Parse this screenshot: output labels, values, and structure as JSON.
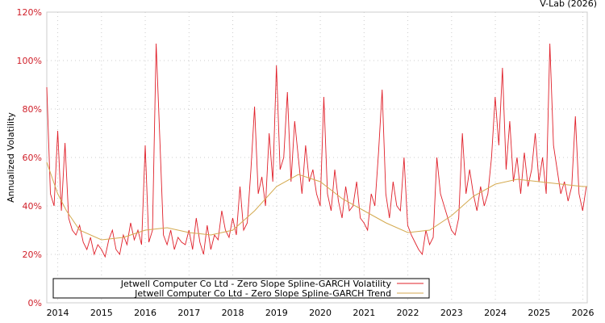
{
  "credit": "V-Lab (2026)",
  "chart_data": {
    "type": "line",
    "title": "",
    "xlabel": "",
    "ylabel": "Annualized Volatility",
    "xlim": [
      2013.75,
      2026.1
    ],
    "ylim": [
      0,
      120
    ],
    "grid": true,
    "y_ticks": [
      0,
      20,
      40,
      60,
      80,
      100,
      120
    ],
    "y_tick_labels": [
      "0%",
      "20%",
      "40%",
      "60%",
      "80%",
      "100%",
      "120%"
    ],
    "x_ticks": [
      2014,
      2015,
      2016,
      2017,
      2018,
      2019,
      2020,
      2021,
      2022,
      2023,
      2024,
      2025,
      2026
    ],
    "x_tick_labels": [
      "2014",
      "2015",
      "2016",
      "2017",
      "2018",
      "2019",
      "2020",
      "2021",
      "2022",
      "2023",
      "2024",
      "2025",
      "2026"
    ],
    "legend_position": "bottom-left",
    "series": [
      {
        "name": "Jetwell Computer Co Ltd - Zero Slope Spline-GARCH Volatility",
        "color": "#e0202a",
        "x_start": 2013.75,
        "x_step": 0.0833,
        "values": [
          89,
          45,
          40,
          71,
          38,
          66,
          35,
          30,
          28,
          32,
          25,
          22,
          27,
          20,
          24,
          22,
          19,
          26,
          30,
          22,
          20,
          28,
          24,
          33,
          26,
          30,
          24,
          65,
          25,
          30,
          107,
          68,
          28,
          24,
          30,
          22,
          27,
          25,
          24,
          30,
          22,
          35,
          25,
          20,
          32,
          22,
          28,
          26,
          38,
          30,
          27,
          35,
          28,
          48,
          30,
          33,
          55,
          81,
          45,
          52,
          40,
          70,
          50,
          98,
          55,
          60,
          87,
          50,
          75,
          60,
          45,
          65,
          50,
          55,
          45,
          40,
          85,
          45,
          38,
          55,
          42,
          35,
          48,
          38,
          40,
          50,
          35,
          33,
          30,
          45,
          40,
          62,
          88,
          45,
          35,
          50,
          40,
          38,
          60,
          32,
          28,
          25,
          22,
          20,
          30,
          24,
          27,
          60,
          45,
          40,
          35,
          30,
          28,
          35,
          70,
          45,
          55,
          45,
          38,
          48,
          40,
          45,
          60,
          85,
          65,
          97,
          55,
          75,
          50,
          60,
          45,
          62,
          48,
          55,
          70,
          50,
          60,
          45,
          107,
          65,
          55,
          45,
          50,
          42,
          48,
          77,
          45,
          38,
          48
        ]
      },
      {
        "name": "Jetwell Computer Co Ltd - Zero Slope Spline-GARCH Trend",
        "color": "#d4aa50",
        "x": [
          2013.75,
          2014.0,
          2014.2,
          2014.5,
          2015.0,
          2015.5,
          2016.0,
          2016.5,
          2017.0,
          2017.5,
          2018.0,
          2018.5,
          2019.0,
          2019.5,
          2020.0,
          2020.5,
          2021.0,
          2021.5,
          2022.0,
          2022.5,
          2023.0,
          2023.5,
          2024.0,
          2024.5,
          2025.0,
          2025.5,
          2026.0,
          2026.1
        ],
        "values": [
          58,
          45,
          38,
          30,
          26,
          27,
          30,
          31,
          29,
          28,
          30,
          38,
          48,
          53,
          50,
          43,
          38,
          33,
          29,
          30,
          36,
          44,
          49,
          51,
          50,
          49,
          48,
          48
        ]
      }
    ]
  }
}
